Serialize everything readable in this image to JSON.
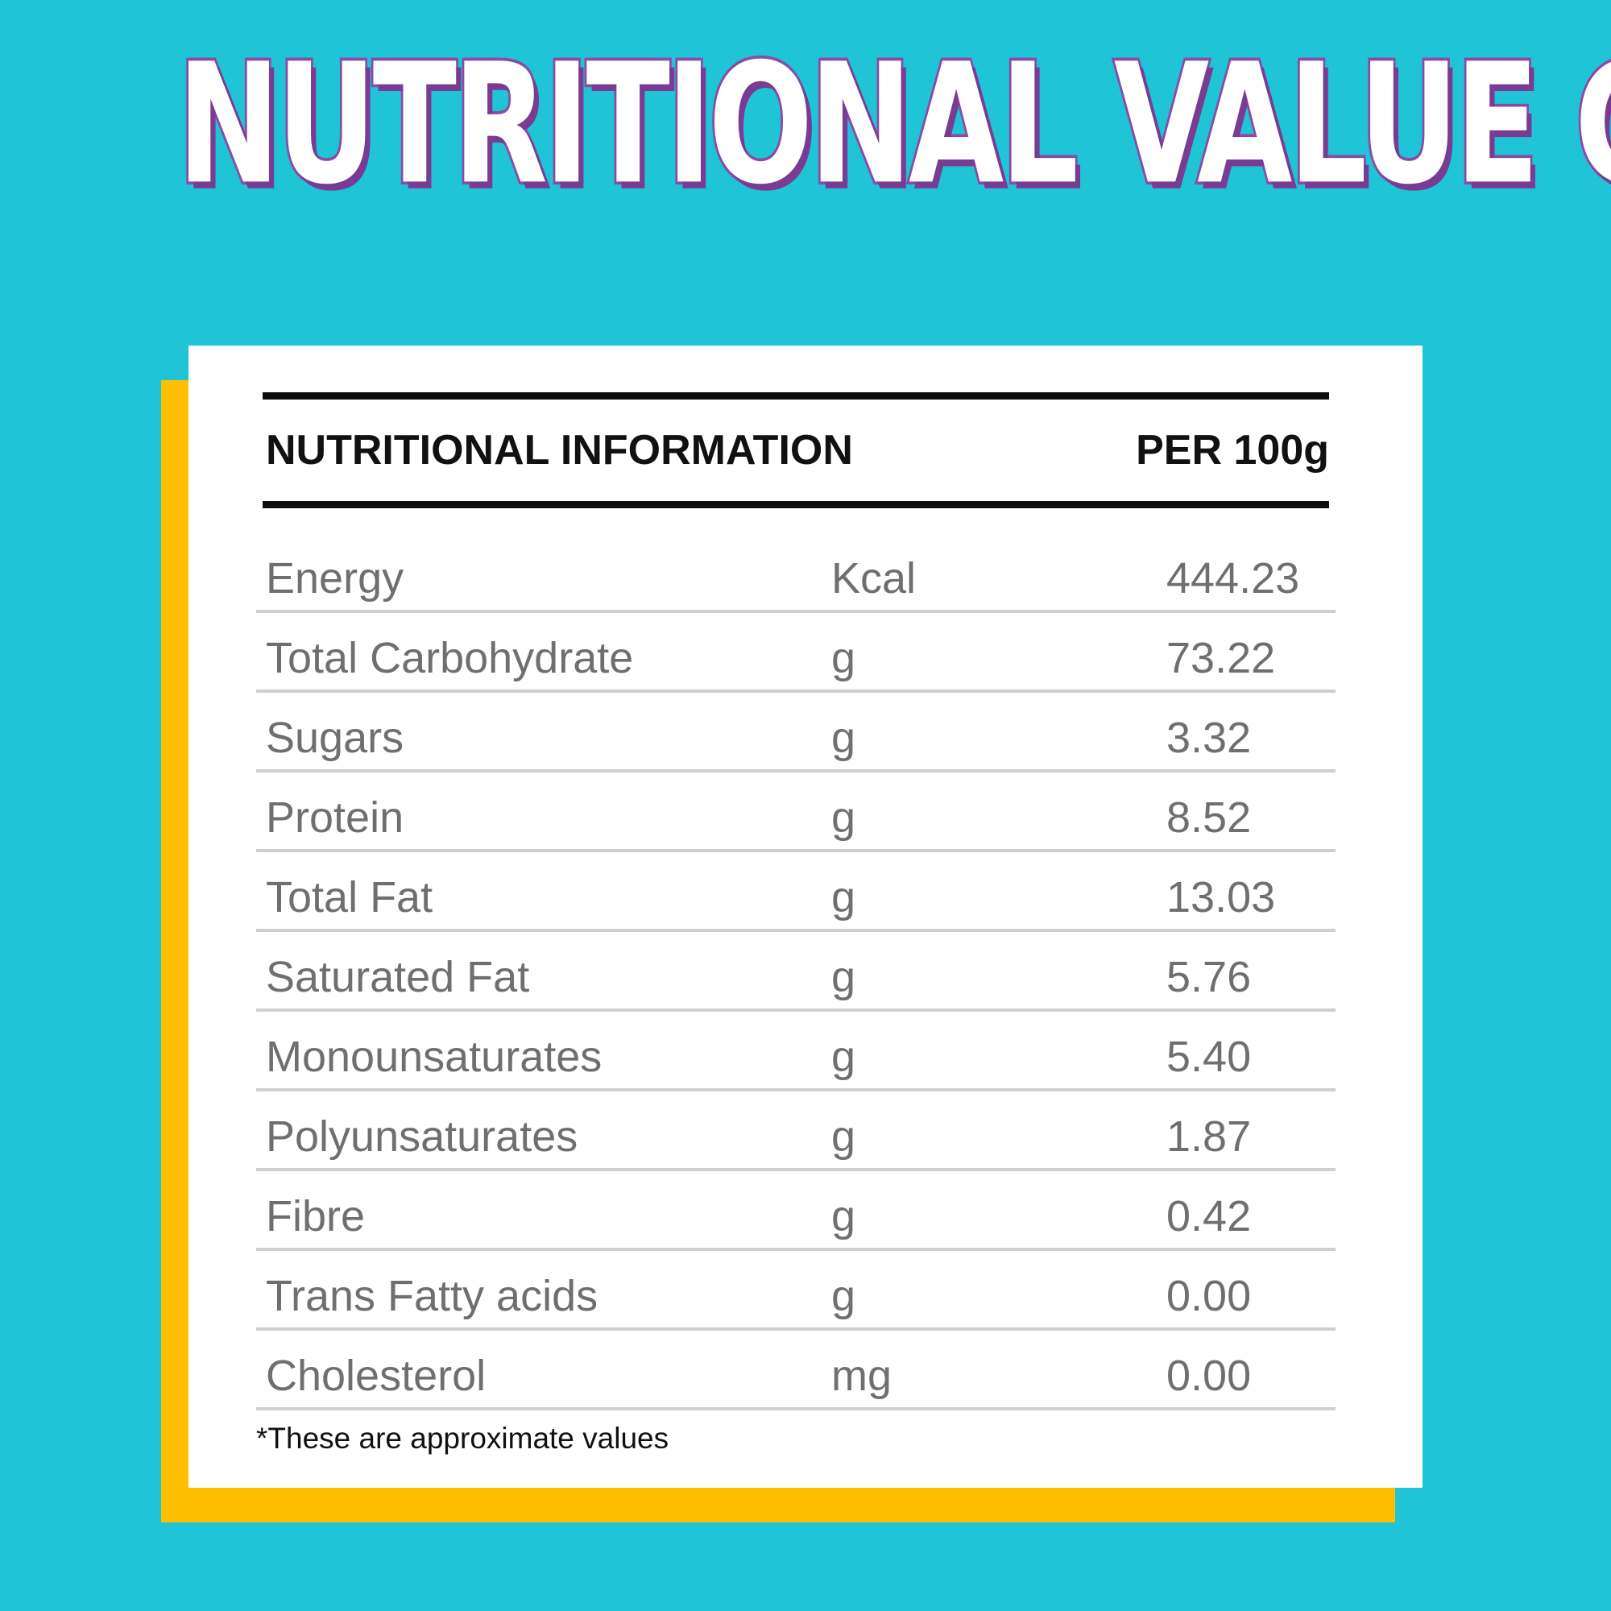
{
  "title": "NUTRITIONAL VALUE CHART",
  "colors": {
    "background": "#1fc4d6",
    "title_fill": "#ffffff",
    "title_outline": "#8b4aa3",
    "card": "#ffffff",
    "card_shadow": "#ffbf00",
    "rule": "#0d0d0d",
    "row_text": "#6f6f6f",
    "row_divider": "#cfcfcf"
  },
  "table": {
    "header_label": "NUTRITIONAL INFORMATION",
    "header_per": "PER 100g",
    "rows": [
      {
        "name": "Energy",
        "unit": "Kcal",
        "value": "444.23"
      },
      {
        "name": "Total Carbohydrate",
        "unit": "g",
        "value": "73.22"
      },
      {
        "name": "Sugars",
        "unit": "g",
        "value": "3.32"
      },
      {
        "name": "Protein",
        "unit": "g",
        "value": "8.52"
      },
      {
        "name": "Total Fat",
        "unit": "g",
        "value": "13.03"
      },
      {
        "name": "Saturated Fat",
        "unit": "g",
        "value": "5.76"
      },
      {
        "name": "Monounsaturates",
        "unit": "g",
        "value": "5.40"
      },
      {
        "name": "Polyunsaturates",
        "unit": "g",
        "value": "1.87"
      },
      {
        "name": "Fibre",
        "unit": "g",
        "value": "0.42"
      },
      {
        "name": "Trans Fatty acids",
        "unit": "g",
        "value": "0.00"
      },
      {
        "name": "Cholesterol",
        "unit": "mg",
        "value": "0.00"
      }
    ],
    "footnote": "*These are approximate values"
  }
}
